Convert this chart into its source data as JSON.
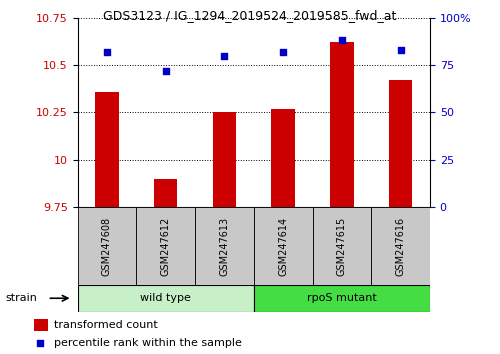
{
  "title": "GDS3123 / IG_1294_2019524_2019585_fwd_at",
  "samples": [
    "GSM247608",
    "GSM247612",
    "GSM247613",
    "GSM247614",
    "GSM247615",
    "GSM247616"
  ],
  "transformed_count": [
    10.36,
    9.9,
    10.25,
    10.27,
    10.62,
    10.42
  ],
  "percentile_rank": [
    82,
    72,
    80,
    82,
    88,
    83
  ],
  "bar_color": "#cc0000",
  "dot_color": "#0000cc",
  "ylim_left": [
    9.75,
    10.75
  ],
  "ylim_right": [
    0,
    100
  ],
  "yticks_left": [
    9.75,
    10.0,
    10.25,
    10.5,
    10.75
  ],
  "ytick_labels_left": [
    "9.75",
    "10",
    "10.25",
    "10.5",
    "10.75"
  ],
  "yticks_right": [
    0,
    25,
    50,
    75,
    100
  ],
  "ytick_labels_right": [
    "0",
    "25",
    "50",
    "75",
    "100%"
  ],
  "groups": [
    {
      "label": "wild type",
      "color": "#c8f0c8",
      "count": 3
    },
    {
      "label": "rpoS mutant",
      "color": "#44dd44",
      "count": 3
    }
  ],
  "strain_label": "strain",
  "legend_bar_label": "transformed count",
  "legend_dot_label": "percentile rank within the sample",
  "bar_color_legend": "#cc0000",
  "dot_color_legend": "#0000cc",
  "left_color": "#cc0000",
  "right_color": "#0000cc",
  "sample_box_color": "#c8c8c8",
  "bar_width": 0.4
}
